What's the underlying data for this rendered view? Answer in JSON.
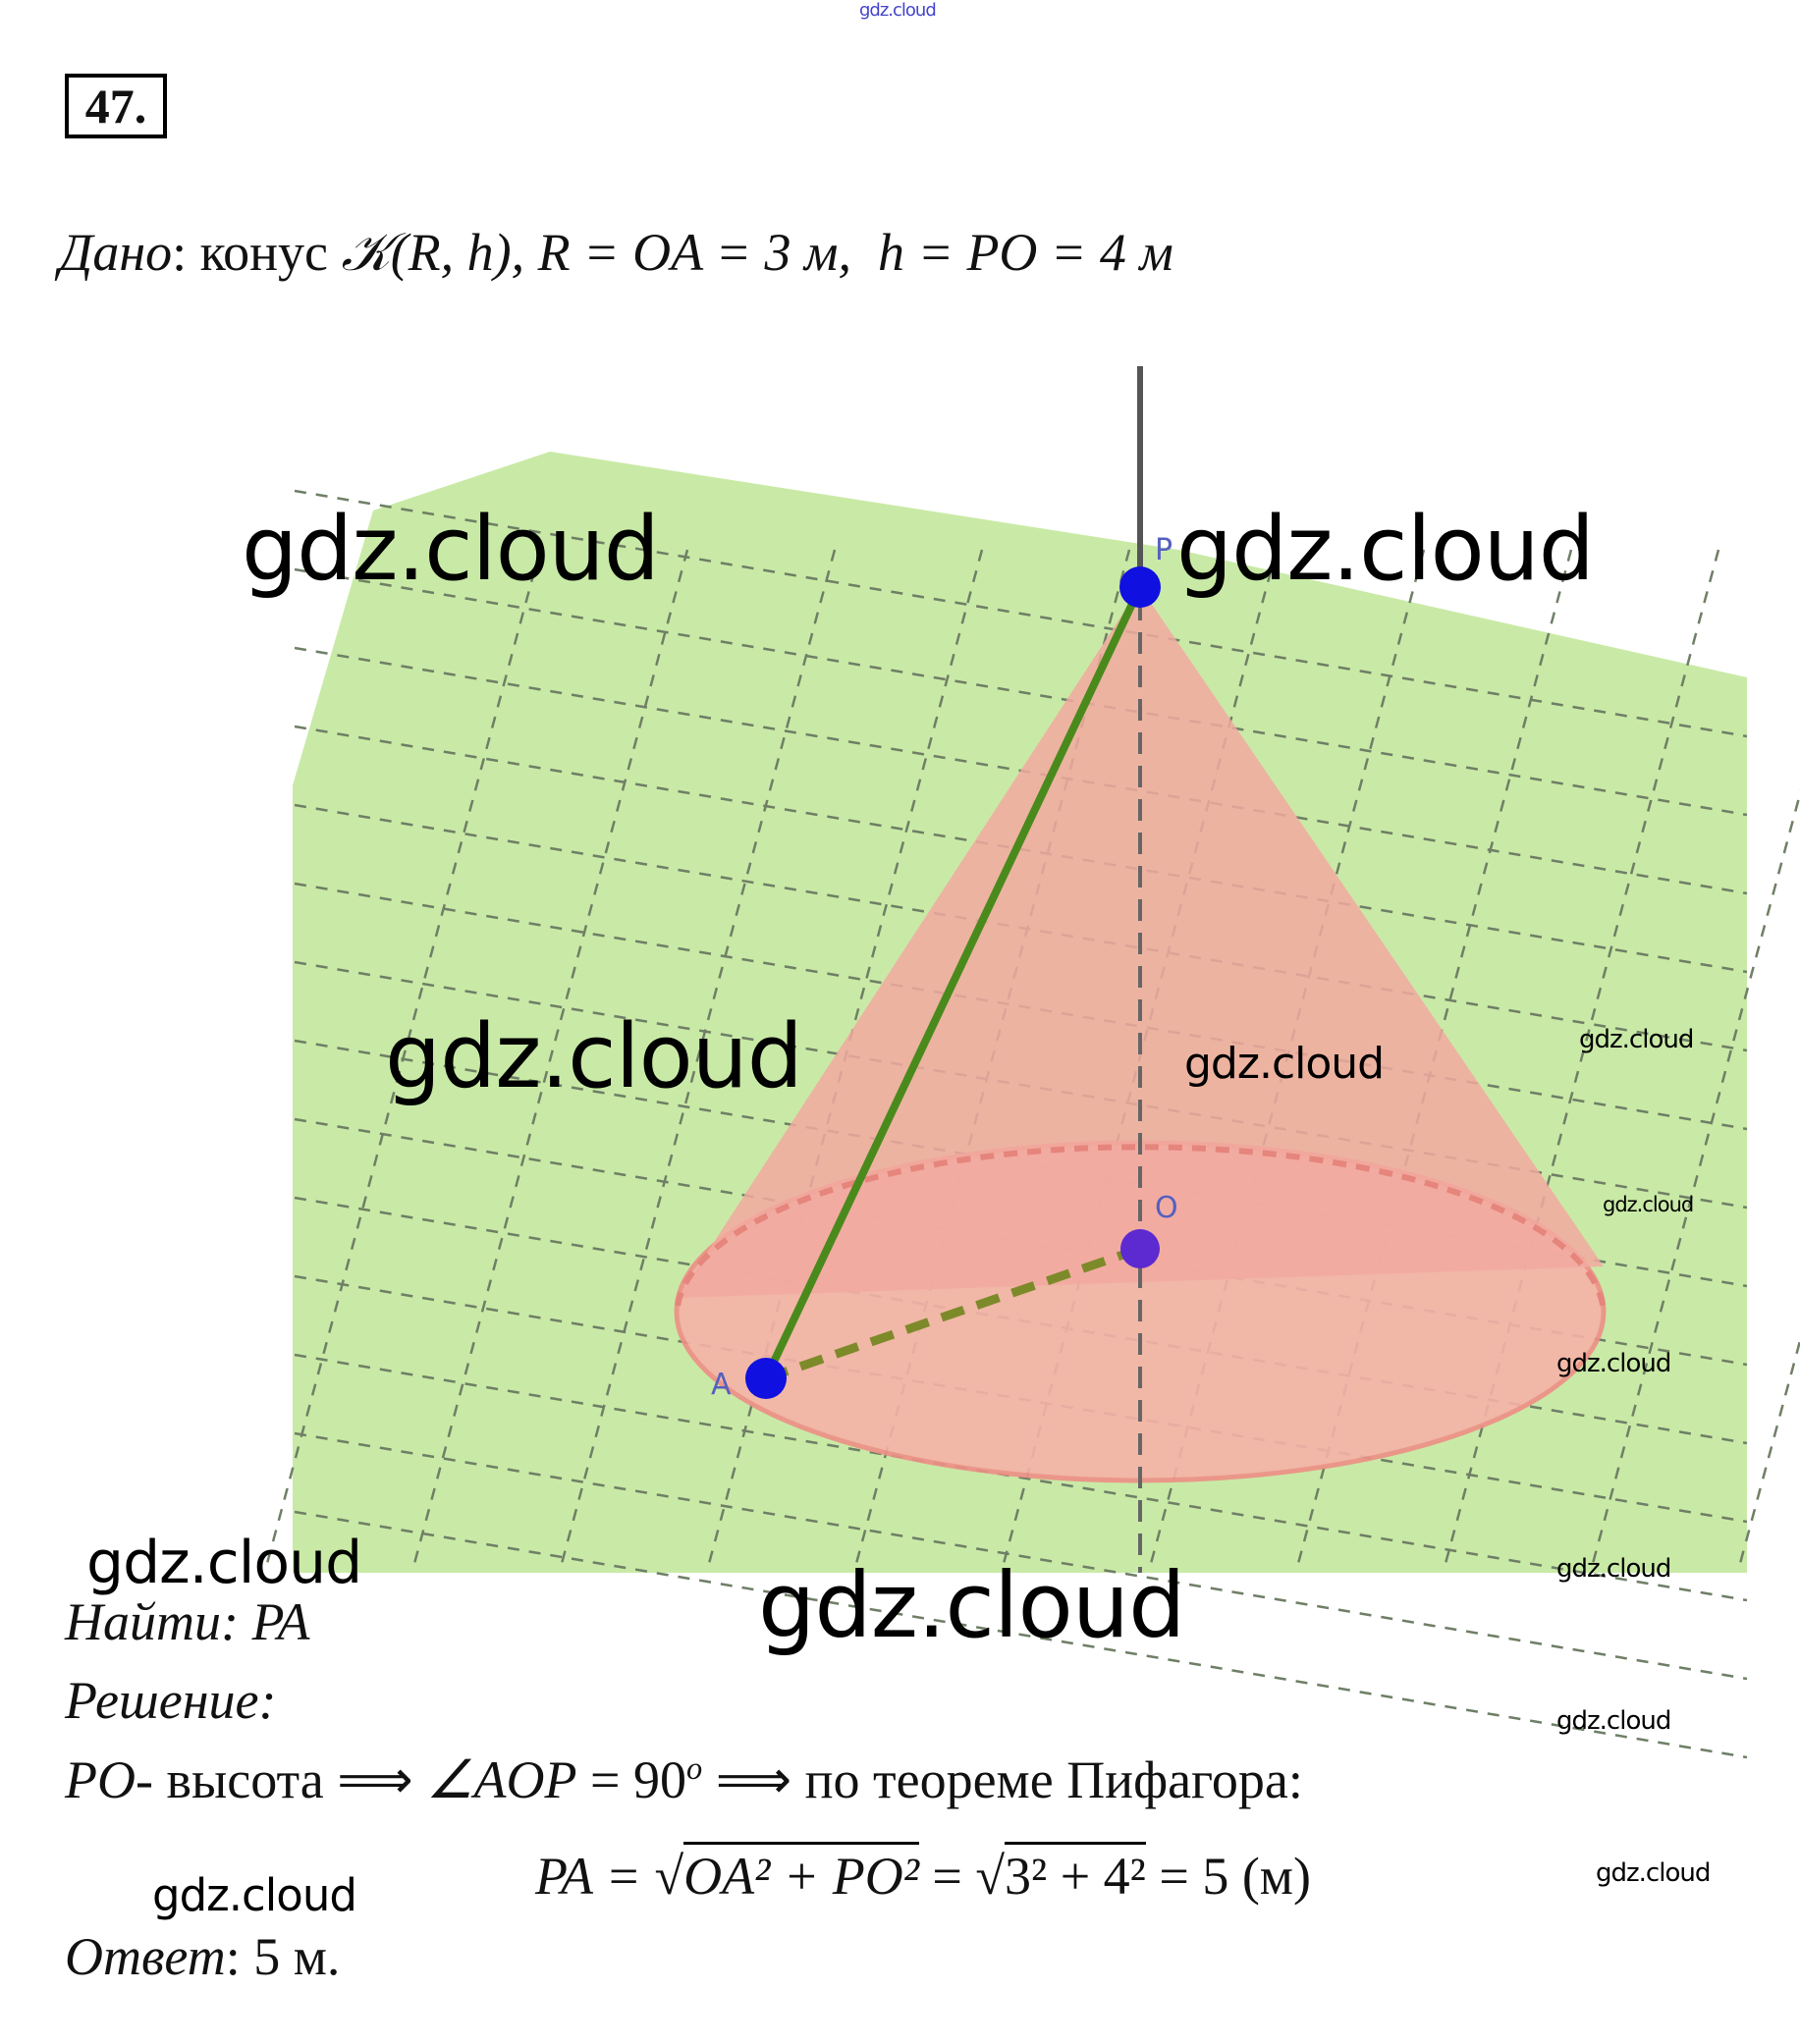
{
  "watermark": "gdz.cloud",
  "problem_number": "47.",
  "given": {
    "label": "Дано",
    "text": ": конус ",
    "cone": "𝒦(R, h)",
    "r_part": ", R = OA = 3 м,",
    "h_part": "h = PO = 4 м"
  },
  "figure": {
    "point_labels": {
      "P": "P",
      "O": "O",
      "A": "A"
    },
    "colors": {
      "plane": "#c9eaa6",
      "cone": "#f2a9a0",
      "generatrix": "#4a8a1c",
      "radius": "#7d8a2a",
      "points": "#1010e0",
      "axis": "#555555"
    }
  },
  "find": {
    "label": "Найти",
    "value": ": PA"
  },
  "solution": {
    "label": "Решение:",
    "line1_a": "PO",
    "line1_b": "- высота ⟹ ",
    "line1_c": "∠AOP",
    "line1_d": " = 90",
    "line1_deg": "o",
    "line1_e": " ⟹ по теореме Пифагора:",
    "formula_lhs": "PA = √",
    "formula_rad1": "OA² + PO²",
    "formula_mid": " = √",
    "formula_rad2": "3² + 4²",
    "formula_rhs": " = 5 (м)"
  },
  "answer": {
    "label": "Ответ",
    "value": ": 5 м."
  }
}
